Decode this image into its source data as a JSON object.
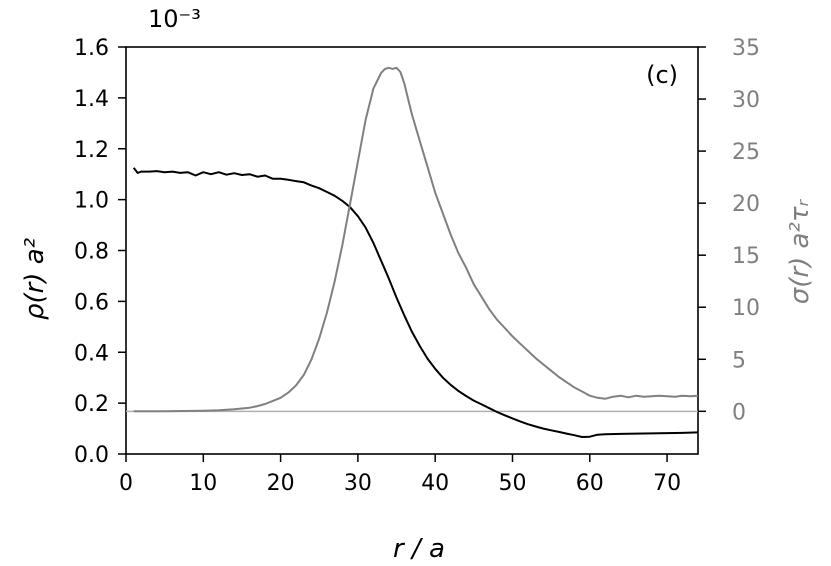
{
  "chart_data": {
    "type": "line",
    "panel_label": "(c)",
    "offset_label": "10⁻³",
    "xlabel": "r / a",
    "ylabel_left": "ρ(r)   a²",
    "ylabel_right": "σ(r)   a²τᵣ",
    "xlim": [
      0,
      74
    ],
    "ylim_left": [
      0.0,
      1.6
    ],
    "ylim_right": [
      -4.1,
      35
    ],
    "x_ticks": [
      0,
      10,
      20,
      30,
      40,
      50,
      60,
      70
    ],
    "y_ticks_left": [
      0.0,
      0.2,
      0.4,
      0.6,
      0.8,
      1.0,
      1.2,
      1.4,
      1.6
    ],
    "y_ticks_right": [
      0,
      5,
      10,
      15,
      20,
      25,
      30,
      35
    ],
    "x_tick_labels": [
      "0",
      "10",
      "20",
      "30",
      "40",
      "50",
      "60",
      "70"
    ],
    "y_tick_labels_left": [
      "0.0",
      "0.2",
      "0.4",
      "0.6",
      "0.8",
      "1.0",
      "1.2",
      "1.4",
      "1.6"
    ],
    "y_tick_labels_right": [
      "0",
      "5",
      "10",
      "15",
      "20",
      "25",
      "30",
      "35"
    ],
    "grid": false,
    "colors": {
      "rho": "#000000",
      "sigma": "#808080",
      "zero_line": "#b0b0b0",
      "right_axis": "#808080"
    },
    "series": [
      {
        "axis": "left",
        "x": [
          1,
          1.5,
          2,
          3,
          4,
          5,
          6,
          7,
          8,
          9,
          10,
          11,
          12,
          13,
          14,
          15,
          16,
          17,
          18,
          19,
          20,
          21,
          22,
          23,
          24,
          25,
          26,
          27,
          28,
          29,
          30,
          31,
          32,
          33,
          34,
          35,
          36,
          37,
          38,
          39,
          40,
          41,
          42,
          43,
          44,
          45,
          46,
          47,
          48,
          49,
          50,
          51,
          52,
          53,
          54,
          55,
          56,
          57,
          58,
          59,
          60,
          61,
          62,
          64,
          66,
          68,
          70,
          72,
          74
        ],
        "values": [
          1.125,
          1.105,
          1.11,
          1.11,
          1.112,
          1.108,
          1.11,
          1.105,
          1.108,
          1.095,
          1.108,
          1.1,
          1.108,
          1.098,
          1.104,
          1.097,
          1.1,
          1.09,
          1.095,
          1.082,
          1.082,
          1.078,
          1.073,
          1.068,
          1.055,
          1.045,
          1.03,
          1.015,
          0.995,
          0.97,
          0.935,
          0.89,
          0.83,
          0.76,
          0.69,
          0.615,
          0.545,
          0.48,
          0.425,
          0.375,
          0.335,
          0.3,
          0.272,
          0.248,
          0.228,
          0.21,
          0.195,
          0.18,
          0.165,
          0.152,
          0.14,
          0.128,
          0.117,
          0.108,
          0.1,
          0.093,
          0.087,
          0.08,
          0.074,
          0.067,
          0.068,
          0.076,
          0.078,
          0.079,
          0.08,
          0.081,
          0.082,
          0.083,
          0.085
        ]
      },
      {
        "axis": "right",
        "x": [
          1,
          5,
          10,
          12,
          14,
          16,
          17,
          18,
          19,
          20,
          21,
          22,
          23,
          24,
          25,
          26,
          27,
          28,
          29,
          30,
          31,
          32,
          33,
          33.5,
          34,
          34.5,
          35,
          35.5,
          36,
          36.5,
          37,
          38,
          39,
          40,
          41,
          42,
          43,
          44,
          45,
          46,
          47,
          48,
          49,
          50,
          51,
          52,
          53,
          54,
          55,
          56,
          57,
          58,
          59,
          60,
          61,
          62,
          63,
          64,
          65,
          66,
          67,
          68,
          69,
          70,
          71,
          72,
          73,
          74
        ],
        "values": [
          0,
          0,
          0.05,
          0.1,
          0.2,
          0.35,
          0.5,
          0.7,
          1.0,
          1.3,
          1.8,
          2.5,
          3.5,
          5.0,
          7.0,
          9.5,
          12.5,
          16.0,
          20.0,
          24.0,
          28.0,
          31.0,
          32.5,
          32.9,
          33.0,
          32.9,
          33.0,
          32.6,
          31.5,
          30.0,
          28.5,
          26.0,
          23.5,
          21.0,
          19.0,
          17.0,
          15.2,
          13.8,
          12.2,
          11.0,
          9.8,
          8.8,
          8.0,
          7.2,
          6.5,
          5.8,
          5.1,
          4.5,
          3.9,
          3.3,
          2.8,
          2.3,
          1.9,
          1.5,
          1.3,
          1.2,
          1.4,
          1.5,
          1.35,
          1.5,
          1.4,
          1.45,
          1.5,
          1.45,
          1.4,
          1.5,
          1.45,
          1.5
        ]
      }
    ]
  }
}
